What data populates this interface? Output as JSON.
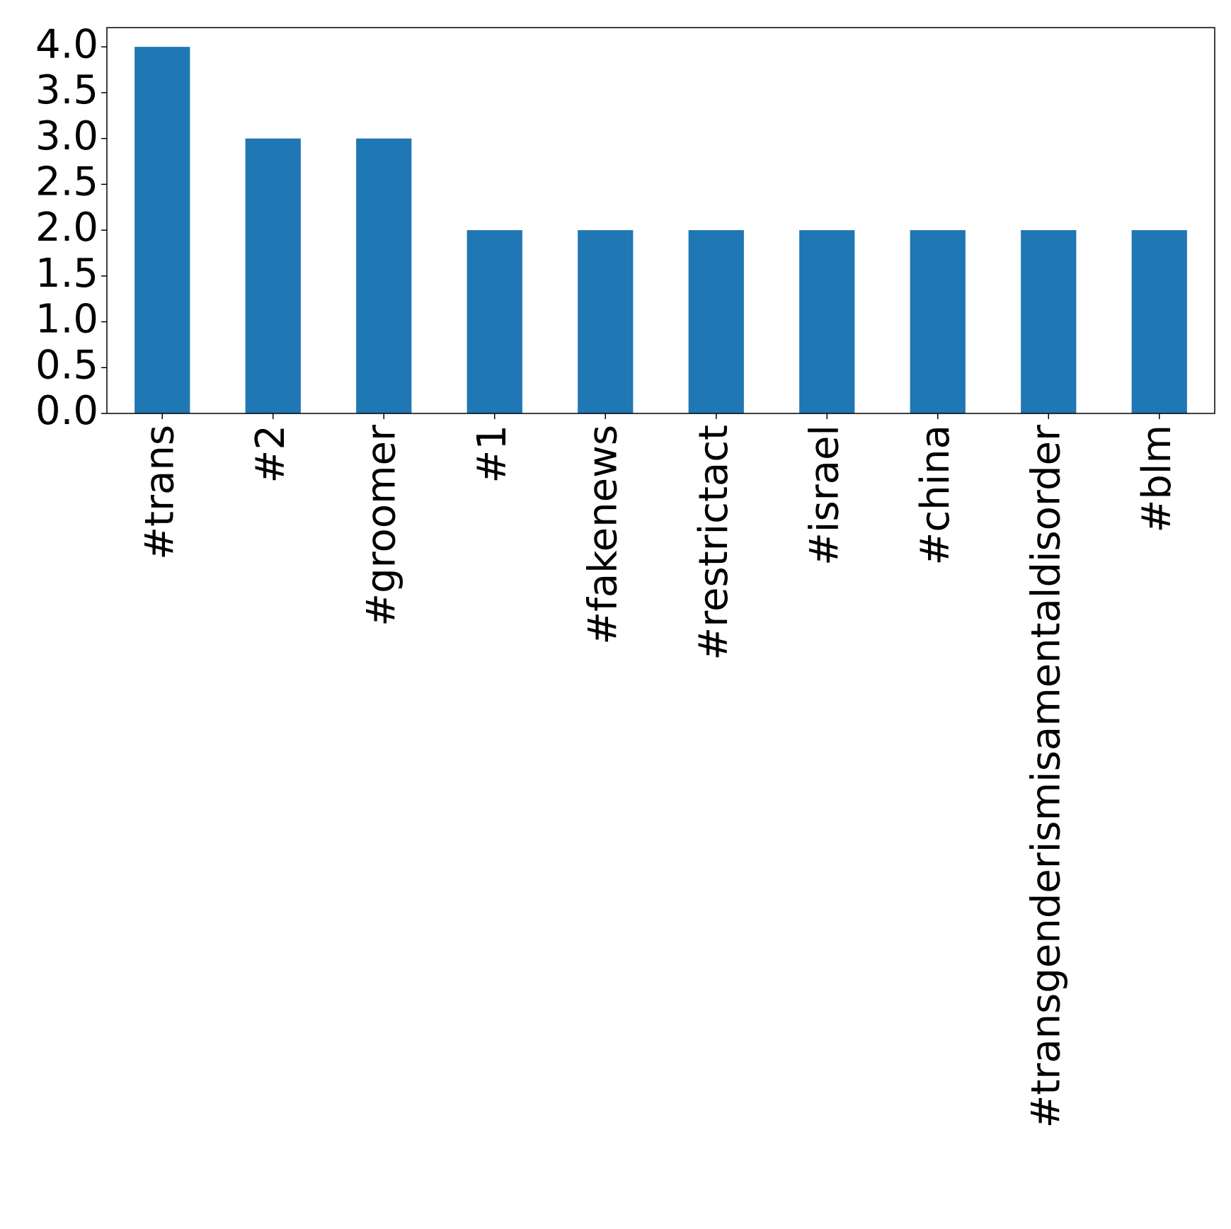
{
  "chart_data": {
    "type": "bar",
    "categories": [
      "#trans",
      "#2",
      "#groomer",
      "#1",
      "#fakenews",
      "#restrictact",
      "#israel",
      "#china",
      "#transgenderismisamentaldisorder",
      "#blm"
    ],
    "values": [
      4,
      3,
      3,
      2,
      2,
      2,
      2,
      2,
      2,
      2
    ],
    "color": "#1f77b4",
    "ylim": [
      0,
      4.21
    ],
    "yticks": [
      {
        "value": 0,
        "label": "0.0"
      },
      {
        "value": 0.5,
        "label": "0.5"
      },
      {
        "value": 1,
        "label": "1.0"
      },
      {
        "value": 1.5,
        "label": "1.5"
      },
      {
        "value": 2,
        "label": "2.0"
      },
      {
        "value": 2.5,
        "label": "2.5"
      },
      {
        "value": 3,
        "label": "3.0"
      },
      {
        "value": 3.5,
        "label": "3.5"
      },
      {
        "value": 4,
        "label": "4.0"
      }
    ],
    "grid": false
  }
}
